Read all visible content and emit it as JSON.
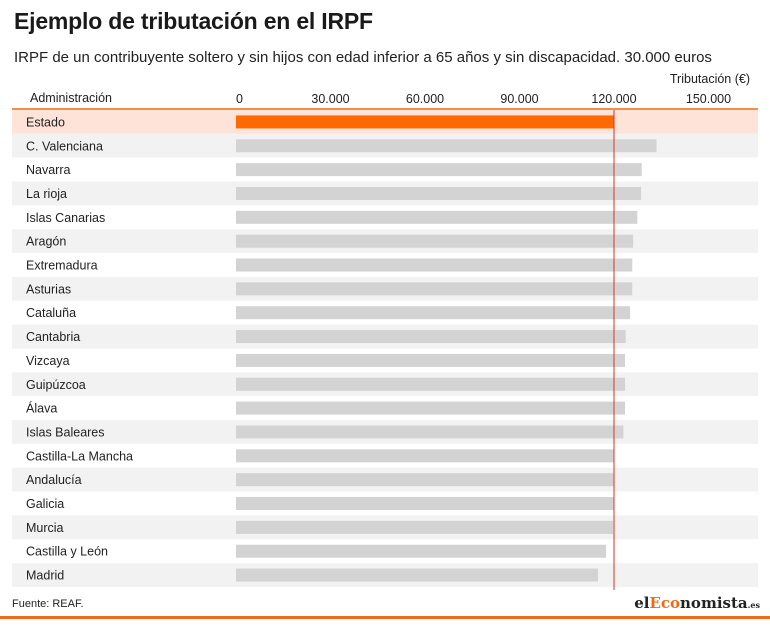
{
  "header": {
    "title": "Ejemplo de tributación en el IRPF",
    "subtitle": "IRPF de un contribuyente soltero y sin hijos con edad inferior a 65 años y sin discapacidad. 30.000 euros"
  },
  "footer": {
    "source": "Fuente: REAF.",
    "logo_prefix": "el",
    "logo_accent": "Eco",
    "logo_suffix": "nomista",
    "logo_tld": ".es"
  },
  "colors": {
    "highlight_bar": "#ff6a00",
    "highlight_row": "#fde3d8",
    "bar": "#d3d3d3",
    "row_alt": "#f2f2f2",
    "reference_line": "#d9331f",
    "axis_rule": "#ee6a14"
  },
  "chart_data": {
    "type": "bar",
    "orientation": "horizontal",
    "category_header": "Administración",
    "value_label": "Tributación (€)",
    "xlim": [
      0,
      150000
    ],
    "ticks": [
      "0",
      "30.000",
      "60.000",
      "90.000",
      "120.000",
      "150.000"
    ],
    "tick_values": [
      0,
      30000,
      60000,
      90000,
      120000,
      150000
    ],
    "highlight": "Estado",
    "reference_value": 120000,
    "categories": [
      "Estado",
      "C. Valenciana",
      "Navarra",
      "La rioja",
      "Islas Canarias",
      "Aragón",
      "Extremadura",
      "Asturias",
      "Cataluña",
      "Cantabria",
      "Vizcaya",
      "Guipúzcoa",
      "Álava",
      "Islas Baleares",
      "Castilla-La Mancha",
      "Andalucía",
      "Galicia",
      "Murcia",
      "Castilla y León",
      "Madrid"
    ],
    "values": [
      120000,
      133500,
      128800,
      128600,
      127400,
      126100,
      125800,
      125800,
      125100,
      123700,
      123500,
      123500,
      123500,
      123000,
      120000,
      120000,
      120000,
      119700,
      117500,
      114900
    ]
  }
}
